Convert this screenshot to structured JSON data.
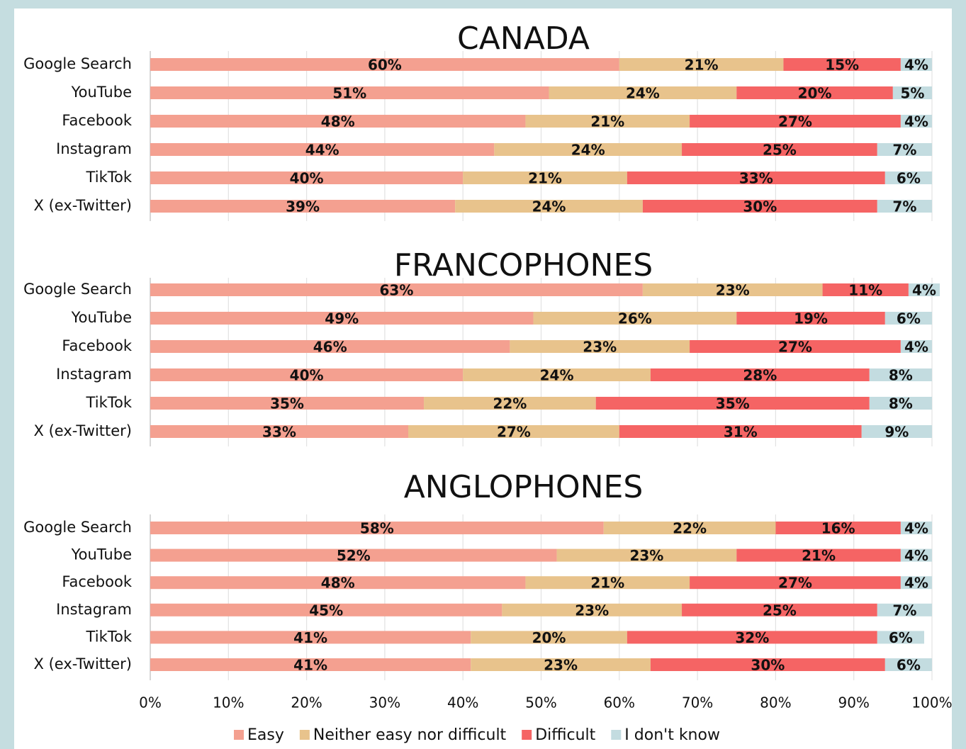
{
  "chart_data": [
    {
      "type": "stacked-bar",
      "title": "CANADA",
      "categories": [
        "Google Search",
        "YouTube",
        "Facebook",
        "Instagram",
        "TikTok",
        "X (ex-Twitter)"
      ],
      "series": [
        {
          "color": "#f4a090",
          "values": [
            60,
            51,
            48,
            44,
            40,
            39
          ],
          "value_labels": [
            "60%",
            "51%",
            "48%",
            "44%",
            "40%",
            "39%"
          ]
        },
        {
          "color": "#e8c38c",
          "values": [
            21,
            24,
            21,
            24,
            21,
            24
          ],
          "value_labels": [
            "21%",
            "24%",
            "21%",
            "24%",
            "21%",
            "24%"
          ]
        },
        {
          "color": "#f56464",
          "values": [
            15,
            20,
            27,
            25,
            33,
            30
          ],
          "value_labels": [
            "15%",
            "20%",
            "27%",
            "25%",
            "33%",
            "30%"
          ]
        },
        {
          "color": "#c3dce0",
          "values": [
            4,
            5,
            4,
            7,
            6,
            7
          ],
          "value_labels": [
            "4%",
            "5%",
            "4%",
            "7%",
            "6%",
            "7%"
          ]
        }
      ]
    },
    {
      "type": "stacked-bar",
      "title": "FRANCOPHONES",
      "categories": [
        "Google Search",
        "YouTube",
        "Facebook",
        "Instagram",
        "TikTok",
        "X (ex-Twitter)"
      ],
      "series": [
        {
          "color": "#f4a090",
          "values": [
            63,
            49,
            46,
            40,
            35,
            33
          ],
          "value_labels": [
            "63%",
            "49%",
            "46%",
            "40%",
            "35%",
            "33%"
          ]
        },
        {
          "color": "#e8c38c",
          "values": [
            23,
            26,
            23,
            24,
            22,
            27
          ],
          "value_labels": [
            "23%",
            "26%",
            "23%",
            "24%",
            "22%",
            "27%"
          ]
        },
        {
          "color": "#f56464",
          "values": [
            11,
            19,
            27,
            28,
            35,
            31
          ],
          "value_labels": [
            "11%",
            "19%",
            "27%",
            "28%",
            "35%",
            "31%"
          ]
        },
        {
          "color": "#c3dce0",
          "values": [
            4,
            6,
            4,
            8,
            8,
            9
          ],
          "value_labels": [
            "4%",
            "6%",
            "4%",
            "8%",
            "8%",
            "9%"
          ]
        }
      ]
    },
    {
      "type": "stacked-bar",
      "title": "ANGLOPHONES",
      "categories": [
        "Google Search",
        "YouTube",
        "Facebook",
        "Instagram",
        "TikTok",
        "X (ex-Twitter)"
      ],
      "series": [
        {
          "name": "Easy",
          "color": "#f4a090",
          "values": [
            58,
            52,
            48,
            45,
            41,
            41
          ],
          "value_labels": [
            "58%",
            "52%",
            "48%",
            "45%",
            "41%",
            "41%"
          ]
        },
        {
          "name": "Neither easy nor difficult",
          "color": "#e8c38c",
          "values": [
            22,
            23,
            21,
            23,
            20,
            23
          ],
          "value_labels": [
            "22%",
            "23%",
            "21%",
            "23%",
            "20%",
            "23%"
          ]
        },
        {
          "name": "Difficult",
          "color": "#f56464",
          "values": [
            16,
            21,
            27,
            25,
            32,
            30
          ],
          "value_labels": [
            "16%",
            "21%",
            "27%",
            "25%",
            "32%",
            "30%"
          ]
        },
        {
          "name": "I don't know",
          "color": "#c3dce0",
          "values": [
            4,
            4,
            4,
            7,
            6,
            6
          ],
          "value_labels": [
            "4%",
            "4%",
            "4%",
            "7%",
            "6%",
            "6%"
          ]
        }
      ],
      "xlim": [
        0,
        100
      ],
      "xticks": [
        {
          "value": 0,
          "label": "0%"
        },
        {
          "value": 10,
          "label": "10%"
        },
        {
          "value": 20,
          "label": "20%"
        },
        {
          "value": 30,
          "label": "30%"
        },
        {
          "value": 40,
          "label": "40%"
        },
        {
          "value": 50,
          "label": "50%"
        },
        {
          "value": 60,
          "label": "60%"
        },
        {
          "value": 70,
          "label": "70%"
        },
        {
          "value": 80,
          "label": "80%"
        },
        {
          "value": 90,
          "label": "90%"
        },
        {
          "value": 100,
          "label": "100%"
        }
      ],
      "grid": true,
      "legend": "bottom"
    }
  ]
}
